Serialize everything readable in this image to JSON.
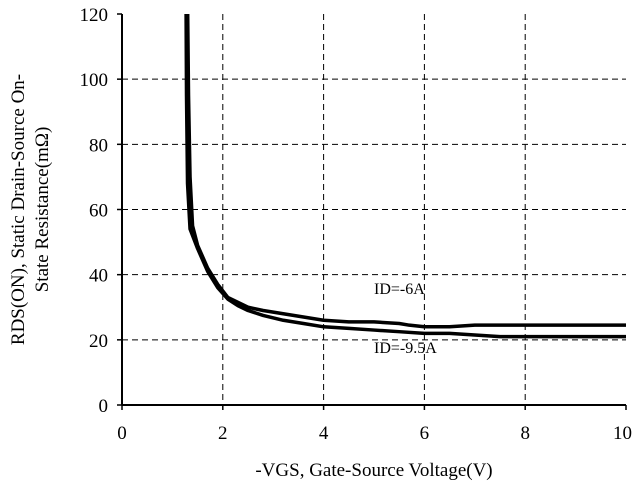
{
  "chart_data": {
    "type": "line",
    "title": "",
    "xlabel": "-VGS, Gate-Source Voltage(V)",
    "ylabel_lines": [
      "RDS(ON), Static Drain-Source On-",
      "State Resistance(mΩ)"
    ],
    "xlim": [
      0,
      10
    ],
    "ylim": [
      0,
      120
    ],
    "x_ticks": [
      0,
      2,
      4,
      6,
      8,
      10
    ],
    "x_tick_labels": [
      "0",
      "2",
      "4",
      "6",
      "8",
      "10"
    ],
    "y_ticks": [
      0,
      20,
      40,
      60,
      80,
      100,
      120
    ],
    "y_tick_labels": [
      "0",
      "20",
      "40",
      "60",
      "80",
      "100",
      "120"
    ],
    "grid": true,
    "grid_style": "dashed",
    "series": [
      {
        "name": "ID=-6A",
        "color": "#000000",
        "label_at": [
          5.0,
          34
        ],
        "points": [
          [
            1.3,
            125
          ],
          [
            1.32,
            95
          ],
          [
            1.35,
            70
          ],
          [
            1.4,
            55
          ],
          [
            1.5,
            49
          ],
          [
            1.7,
            42
          ],
          [
            1.9,
            37
          ],
          [
            2.1,
            33
          ],
          [
            2.3,
            31.5
          ],
          [
            2.5,
            30
          ],
          [
            2.8,
            29
          ],
          [
            3.2,
            28
          ],
          [
            3.6,
            27
          ],
          [
            4.0,
            26
          ],
          [
            4.5,
            25.5
          ],
          [
            5.0,
            25.5
          ],
          [
            5.5,
            25
          ],
          [
            5.7,
            24.5
          ],
          [
            6.0,
            24
          ],
          [
            6.5,
            24
          ],
          [
            7.0,
            24.5
          ],
          [
            8.0,
            24.5
          ],
          [
            9.0,
            24.5
          ],
          [
            10.0,
            24.5
          ]
        ]
      },
      {
        "name": "ID=-9.5A",
        "color": "#000000",
        "label_at": [
          5.0,
          16
        ],
        "points": [
          [
            1.27,
            125
          ],
          [
            1.28,
            95
          ],
          [
            1.3,
            68
          ],
          [
            1.35,
            54
          ],
          [
            1.5,
            48
          ],
          [
            1.7,
            41
          ],
          [
            1.9,
            36
          ],
          [
            2.1,
            32.5
          ],
          [
            2.3,
            30.5
          ],
          [
            2.5,
            29
          ],
          [
            2.8,
            27.5
          ],
          [
            3.2,
            26
          ],
          [
            3.6,
            25
          ],
          [
            4.0,
            24
          ],
          [
            4.5,
            23.5
          ],
          [
            5.0,
            23
          ],
          [
            5.5,
            22.5
          ],
          [
            6.0,
            22
          ],
          [
            6.5,
            22
          ],
          [
            7.0,
            21.5
          ],
          [
            7.5,
            21
          ],
          [
            8.0,
            21
          ],
          [
            9.0,
            21
          ],
          [
            10.0,
            21
          ]
        ]
      }
    ]
  }
}
